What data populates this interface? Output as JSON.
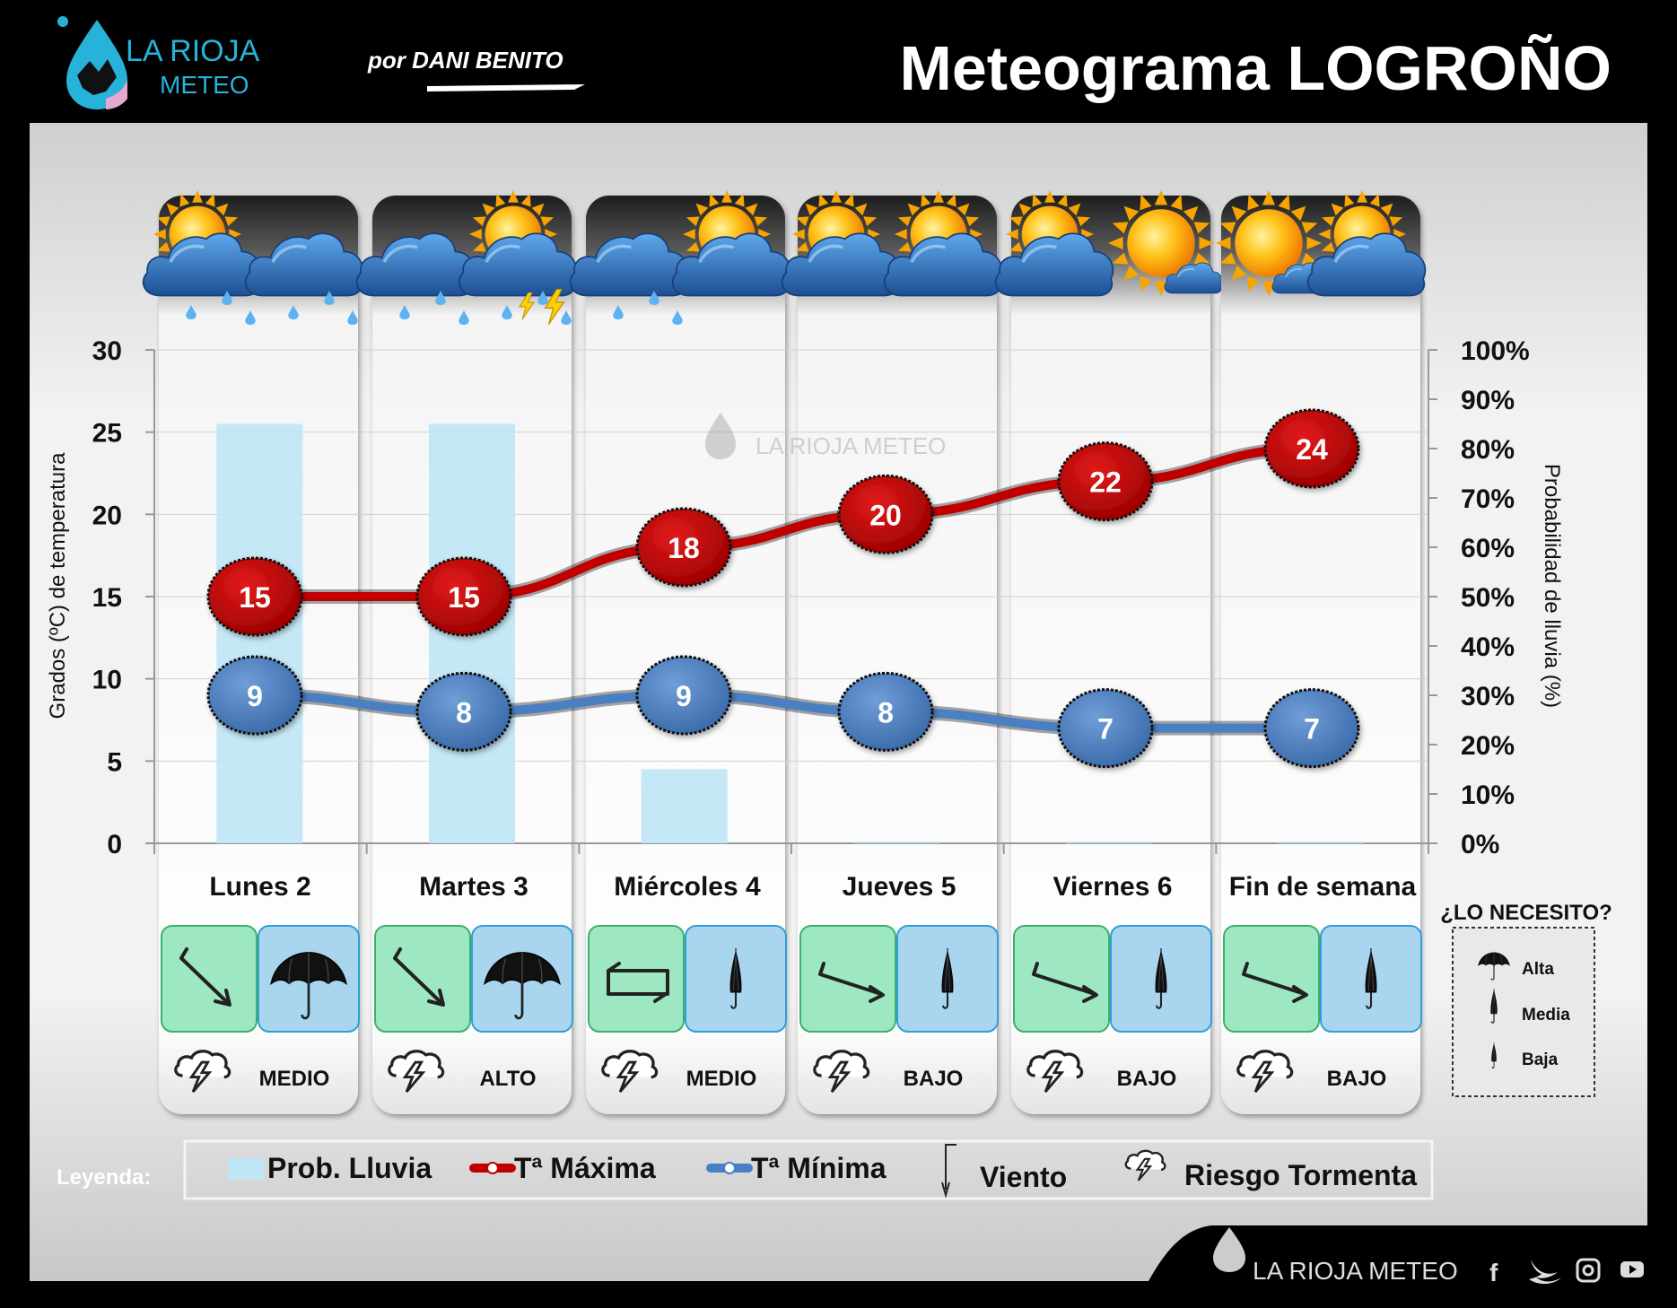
{
  "header": {
    "logo_line1": "LA RIOJA",
    "logo_line2": "METEO",
    "author": "por DANI BENITO",
    "title": "Meteograma LOGROÑO"
  },
  "watermark": "LA RIOJA METEO",
  "footer": {
    "brand": "LA RIOJA METEO",
    "social": [
      "facebook-icon",
      "twitter-icon",
      "instagram-icon",
      "youtube-icon"
    ]
  },
  "chart_data": {
    "type": "line",
    "categories": [
      "Lunes 2",
      "Martes 3",
      "Miércoles 4",
      "Jueves 5",
      "Viernes 6",
      "Fin de semana"
    ],
    "series": [
      {
        "name": "Tª Máxima",
        "type": "line",
        "axis": "left",
        "color": "#c00000",
        "values": [
          15,
          15,
          18,
          20,
          22,
          24
        ]
      },
      {
        "name": "Tª Mínima",
        "type": "line",
        "axis": "left",
        "color": "#4a7fc1",
        "values": [
          9,
          8,
          9,
          8,
          7,
          7
        ]
      },
      {
        "name": "Prob. Lluvia",
        "type": "bar",
        "axis": "right",
        "color": "#bfe6f5",
        "values": [
          85,
          85,
          15,
          0,
          0,
          0
        ]
      }
    ],
    "ylabel": "Grados (ºC) de temperatura",
    "y2label": "Probabilidad de lluvia (%)",
    "ylim": [
      0,
      30
    ],
    "y2lim": [
      0,
      100
    ],
    "yticks": [
      "0",
      "5",
      "10",
      "15",
      "20",
      "25",
      "30"
    ],
    "y2ticks": [
      "0%",
      "10%",
      "20%",
      "30%",
      "40%",
      "50%",
      "60%",
      "70%",
      "80%",
      "90%",
      "100%"
    ],
    "grid": true
  },
  "days": [
    {
      "label": "Lunes 2",
      "sky": [
        "sun-cloud-rain-icon",
        "cloud-rain-icon"
      ],
      "wind_icon": "wind-arrow-nw-icon",
      "umbrella": "umbrella-open-icon",
      "storm_risk": "MEDIO"
    },
    {
      "label": "Martes 3",
      "sky": [
        "cloud-rain-icon",
        "sun-cloud-storm-icon"
      ],
      "wind_icon": "wind-arrow-nw-icon",
      "umbrella": "umbrella-open-icon",
      "storm_risk": "ALTO"
    },
    {
      "label": "Miércoles 4",
      "sky": [
        "cloud-rain-icon",
        "sun-cloud-icon"
      ],
      "wind_icon": "wind-variable-icon",
      "umbrella": "umbrella-closed-icon",
      "storm_risk": "MEDIO"
    },
    {
      "label": "Jueves 5",
      "sky": [
        "sun-cloud-icon",
        "sun-cloud-icon"
      ],
      "wind_icon": "wind-arrow-w-icon",
      "umbrella": "umbrella-closed-icon",
      "storm_risk": "BAJO"
    },
    {
      "label": "Viernes 6",
      "sky": [
        "sun-cloud-icon",
        "sun-small-cloud-icon"
      ],
      "wind_icon": "wind-arrow-w-icon",
      "umbrella": "umbrella-closed-icon",
      "storm_risk": "BAJO"
    },
    {
      "label": "Fin de semana",
      "sky": [
        "sun-small-cloud-icon",
        "sun-cloud-icon"
      ],
      "wind_icon": "wind-arrow-w-icon",
      "umbrella": "umbrella-closed-icon",
      "storm_risk": "BAJO"
    }
  ],
  "necesito": {
    "title": "¿LO NECESITO?",
    "items": [
      "Alta",
      "Media",
      "Baja"
    ]
  },
  "legend": {
    "label": "Leyenda:",
    "items": [
      "Prob. Lluvia",
      "Tª Máxima",
      "Tª Mínima",
      "Viento",
      "Riesgo Tormenta"
    ]
  }
}
